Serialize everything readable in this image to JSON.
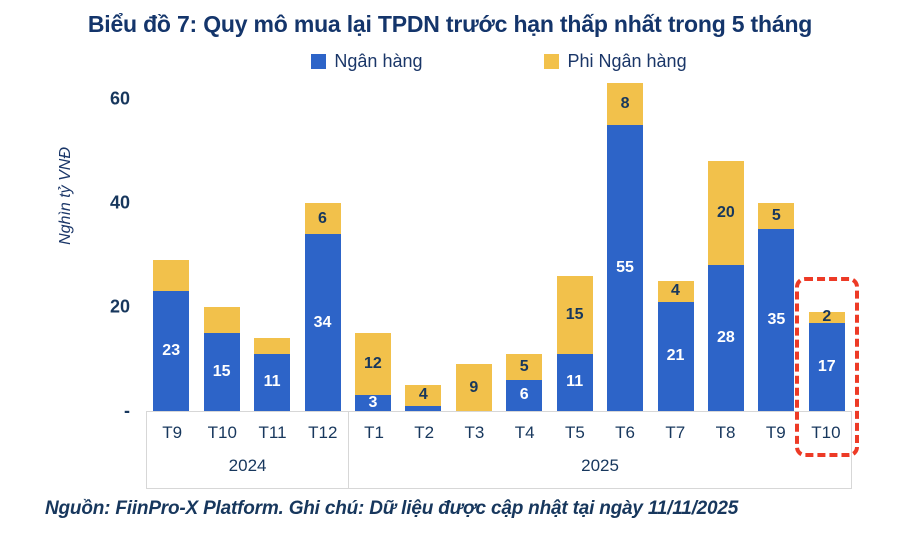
{
  "title": "Biểu đồ 7: Quy mô mua lại TPDN trước hạn thấp nhất trong 5 tháng",
  "legend": [
    {
      "label": "Ngân hàng",
      "color": "#2D64C8"
    },
    {
      "label": "Phi Ngân hàng",
      "color": "#F2C14B"
    }
  ],
  "y_axis": {
    "label": "Nghìn tỷ VNĐ",
    "ticks": [
      {
        "value": 60,
        "label": "60"
      },
      {
        "value": 40,
        "label": "40"
      },
      {
        "value": 20,
        "label": "20"
      },
      {
        "value": 0,
        "label": "-"
      }
    ]
  },
  "source_note": "Nguồn: FiinPro-X Platform. Ghi chú: Dữ liệu được cập nhật tại ngày 11/11/2025",
  "colors": {
    "bank": "#2D64C8",
    "nonbank": "#F2C14B",
    "text": "#17375D",
    "highlight": "#ED3A26",
    "axis_border": "#D7D7D7"
  },
  "chart_data": {
    "type": "bar",
    "stacked": true,
    "title": "Biểu đồ 7: Quy mô mua lại TPDN trước hạn thấp nhất trong 5 tháng",
    "ylabel": "Nghìn tỷ VNĐ",
    "ylim": [
      0,
      65
    ],
    "grid": false,
    "legend_position": "top",
    "categories": [
      "T9",
      "T10",
      "T11",
      "T12",
      "T1",
      "T2",
      "T3",
      "T4",
      "T5",
      "T6",
      "T7",
      "T8",
      "T9",
      "T10"
    ],
    "groups": [
      {
        "label": "2024",
        "count": 4
      },
      {
        "label": "2025",
        "count": 10
      }
    ],
    "series": [
      {
        "name": "Ngân hàng",
        "color": "#2D64C8",
        "values": [
          23,
          15,
          11,
          34,
          3,
          1,
          0,
          6,
          11,
          55,
          21,
          28,
          35,
          17
        ],
        "labels": [
          "23",
          "15",
          "11",
          "34",
          "3",
          "",
          "",
          "6",
          "11",
          "55",
          "21",
          "28",
          "35",
          "17"
        ]
      },
      {
        "name": "Phi Ngân hàng",
        "color": "#F2C14B",
        "values": [
          6,
          5,
          3,
          6,
          12,
          4,
          9,
          5,
          15,
          8,
          4,
          20,
          5,
          2
        ],
        "labels": [
          "",
          "",
          "",
          "6",
          "12",
          "4",
          "9",
          "5",
          "15",
          "8",
          "4",
          "20",
          "5",
          "2"
        ]
      }
    ],
    "highlight_index": 13,
    "highlight_note": "red dashed box around last column (T10 2025)"
  }
}
